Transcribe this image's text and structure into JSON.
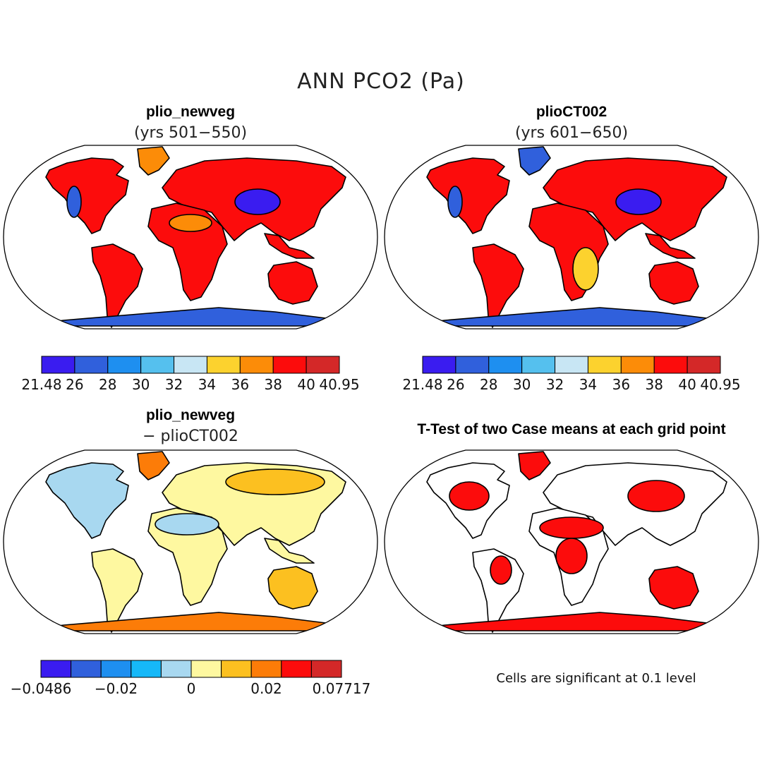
{
  "chart_data": [
    {
      "type": "heatmap",
      "panel": "top-left",
      "projection": "robinson",
      "title": "plio_newveg",
      "subtitle": "(yrs 501−550)",
      "colorbar": {
        "ticks": [
          "21.48",
          "26",
          "28",
          "30",
          "32",
          "34",
          "36",
          "38",
          "40",
          "40.95"
        ],
        "colors": [
          "#3a1cf0",
          "#3060dc",
          "#1e8ff0",
          "#55c0ee",
          "#c8e6f4",
          "#fcd22e",
          "#fc8c08",
          "#fc0c0c",
          "#d42828"
        ]
      },
      "fills": {
        "land": "#fc0c0c",
        "land_alt": "#fc8c08",
        "high_plateau": "#3a1cf0",
        "antarctica_band": "#3060dc"
      }
    },
    {
      "type": "heatmap",
      "panel": "top-right",
      "projection": "robinson",
      "title": "plioCT002",
      "subtitle": "(yrs 601−650)",
      "colorbar": {
        "ticks": [
          "21.48",
          "26",
          "28",
          "30",
          "32",
          "34",
          "36",
          "38",
          "40",
          "40.95"
        ],
        "colors": [
          "#3a1cf0",
          "#3060dc",
          "#1e8ff0",
          "#55c0ee",
          "#c8e6f4",
          "#fcd22e",
          "#fc8c08",
          "#fc0c0c",
          "#d42828"
        ]
      },
      "fills": {
        "land": "#fc0c0c",
        "land_alt": "#fcd22e",
        "high_plateau": "#3a1cf0",
        "antarctica_band": "#3060dc"
      }
    },
    {
      "type": "heatmap",
      "panel": "bottom-left",
      "projection": "robinson",
      "title": "plio_newveg",
      "subtitle": "− plioCT002",
      "colorbar": {
        "ticks": [
          "−0.0486",
          "−0.02",
          "0",
          "0.02",
          "0.07717"
        ],
        "colors": [
          "#3a1cf0",
          "#3060dc",
          "#1e8ff0",
          "#16b8f8",
          "#a8d8f0",
          "#fef8a0",
          "#fcc020",
          "#fc7c08",
          "#fc0c0c",
          "#d42828"
        ]
      },
      "fills": {
        "land": "#fef8a0",
        "land_alt": "#a8d8f0",
        "high_plateau": "#fcc020",
        "antarctica_band": "#fc7c08"
      }
    },
    {
      "type": "heatmap",
      "panel": "bottom-right",
      "projection": "robinson",
      "title": "T-Test of two Case means at each grid point",
      "note": "Cells are significant at 0.1 level",
      "fills": {
        "significant": "#fc0c0c",
        "not_significant": "#ffffff"
      }
    }
  ],
  "figure": {
    "title": "ANN PCO2 (Pa)"
  }
}
